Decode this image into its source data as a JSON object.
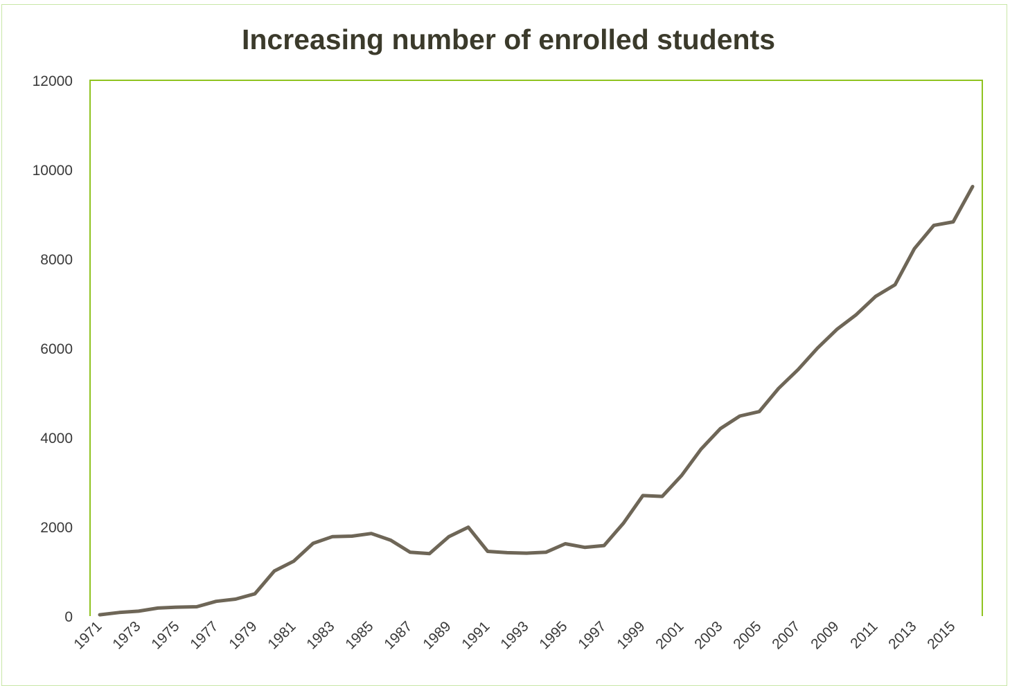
{
  "chart_data": {
    "type": "line",
    "title": "Increasing number of enrolled students",
    "xlabel": "",
    "ylabel": "",
    "ylim": [
      0,
      12000
    ],
    "yticks": [
      "0",
      "2000",
      "4000",
      "6000",
      "8000",
      "10000",
      "12000"
    ],
    "xtick_labels": [
      "1971",
      "1973",
      "1975",
      "1977",
      "1979",
      "1981",
      "1983",
      "1985",
      "1987",
      "1989",
      "1991",
      "1993",
      "1995",
      "1997",
      "1999",
      "2001",
      "2003",
      "2005",
      "2007",
      "2009",
      "2011",
      "2013",
      "2015"
    ],
    "grid": false,
    "legend": "none",
    "x": [
      1971,
      1972,
      1973,
      1974,
      1975,
      1976,
      1977,
      1978,
      1979,
      1980,
      1981,
      1982,
      1983,
      1984,
      1985,
      1986,
      1987,
      1988,
      1989,
      1990,
      1991,
      1992,
      1993,
      1994,
      1995,
      1996,
      1997,
      1998,
      1999,
      2000,
      2001,
      2002,
      2003,
      2004,
      2005,
      2006,
      2007,
      2008,
      2009,
      2010,
      2011,
      2012,
      2013,
      2014,
      2015,
      2016
    ],
    "series": [
      {
        "values": [
          30,
          80,
          110,
          180,
          200,
          210,
          330,
          380,
          500,
          1010,
          1230,
          1630,
          1780,
          1790,
          1850,
          1700,
          1430,
          1400,
          1780,
          1990,
          1450,
          1420,
          1410,
          1430,
          1620,
          1540,
          1580,
          2080,
          2700,
          2680,
          3150,
          3740,
          4200,
          4480,
          4580,
          5100,
          5520,
          6000,
          6420,
          6750,
          7160,
          7420,
          8230,
          8750,
          8830,
          9620
        ]
      }
    ],
    "colors": {
      "line": "#6e6657",
      "axis": "#8fc31f",
      "title": "#3b3a2b",
      "frame": "#c8e6a6"
    }
  }
}
